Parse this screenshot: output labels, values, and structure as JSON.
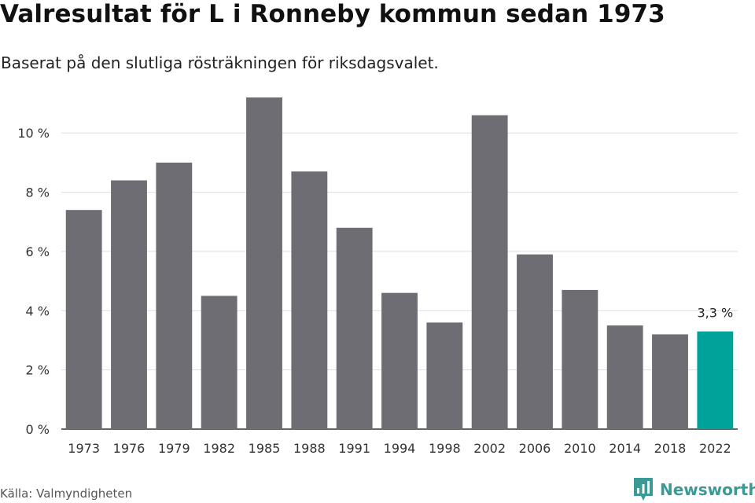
{
  "header": {
    "title": "Valresultat för L i Ronneby kommun sedan 1973",
    "subtitle": "Baserat på den slutliga rösträkningen för riksdagsvalet."
  },
  "footer": {
    "source": "Källa: Valmyndigheten",
    "brand": "Newsworthy",
    "brand_icon": "bar-chart-badge-icon"
  },
  "colors": {
    "bar": "#6e6d73",
    "highlight": "#00a39a",
    "grid": "#dddddd",
    "axis": "#333333",
    "brand": "#3a9a96"
  },
  "chart_data": {
    "type": "bar",
    "categories": [
      "1973",
      "1976",
      "1979",
      "1982",
      "1985",
      "1988",
      "1991",
      "1994",
      "1998",
      "2002",
      "2006",
      "2010",
      "2014",
      "2018",
      "2022"
    ],
    "values": [
      7.4,
      8.4,
      9.0,
      4.5,
      11.2,
      8.7,
      6.8,
      4.6,
      3.6,
      10.6,
      5.9,
      4.7,
      3.5,
      3.2,
      3.3
    ],
    "ylim": [
      0,
      11.2
    ],
    "yticks": [
      0,
      2,
      4,
      6,
      8,
      10
    ],
    "ytick_labels": [
      "0 %",
      "2 %",
      "4 %",
      "6 %",
      "8 %",
      "10 %"
    ],
    "highlight_index": 14,
    "annotation": {
      "index": 14,
      "text": "3,3 %"
    },
    "grid": true
  }
}
